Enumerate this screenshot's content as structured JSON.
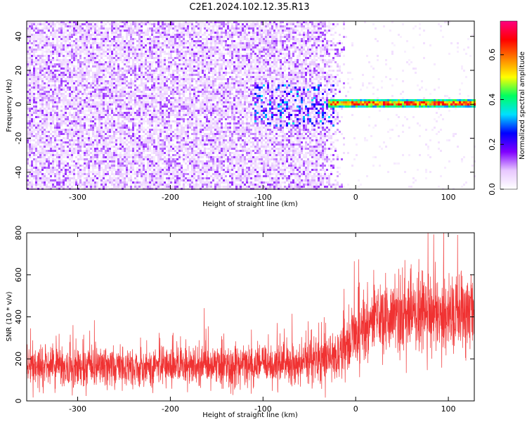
{
  "title": "C2E1.2024.102.12.35.R13",
  "chart_data": [
    {
      "type": "heatmap",
      "name": "spectrogram",
      "xlabel": "Height of straight line (km)",
      "ylabel": "Frequency (Hz)",
      "xlim": [
        -355,
        128
      ],
      "ylim": [
        -50,
        49
      ],
      "xticks": [
        -300,
        -200,
        -100,
        0,
        100
      ],
      "yticks": [
        -40,
        -20,
        0,
        20,
        40
      ],
      "colorbar": {
        "label": "Normalized spectral amplitude",
        "range": [
          0,
          0.75
        ],
        "ticks": [
          0.0,
          0.2,
          0.4,
          0.6
        ],
        "tick_labels": [
          "0.0",
          "0.2",
          "0.4",
          "0.6"
        ],
        "colors": [
          "#ffffff",
          "#e8c8ff",
          "#8000ff",
          "#0000ff",
          "#00e0ff",
          "#00ff60",
          "#ffff00",
          "#ff8000",
          "#ff0000",
          "#ff0080"
        ]
      },
      "features": {
        "noise_region_x": [
          -355,
          -40
        ],
        "signal_band_x": [
          -30,
          128
        ],
        "signal_center_freq_hz": 1.5,
        "signal_half_width_hz": 2.5,
        "noise_amplitude_typical": 0.1,
        "signal_amplitude_typical": 0.45,
        "signal_amplitude_peak": 0.7
      }
    },
    {
      "type": "line",
      "name": "snr",
      "xlabel": "Height of straight line (km)",
      "ylabel": "SNR (10 * v/v)",
      "xlim": [
        -355,
        128
      ],
      "ylim": [
        0,
        800
      ],
      "xticks": [
        -300,
        -200,
        -100,
        0,
        100
      ],
      "yticks": [
        0,
        200,
        400,
        600,
        800
      ],
      "color": "#f03232",
      "trend": {
        "x": [
          -355,
          -250,
          -150,
          -60,
          -30,
          -10,
          0,
          20,
          60,
          128
        ],
        "mean": [
          160,
          165,
          170,
          175,
          200,
          260,
          290,
          380,
          420,
          400
        ],
        "spread": [
          80,
          80,
          80,
          85,
          100,
          120,
          140,
          150,
          150,
          150
        ]
      }
    }
  ]
}
